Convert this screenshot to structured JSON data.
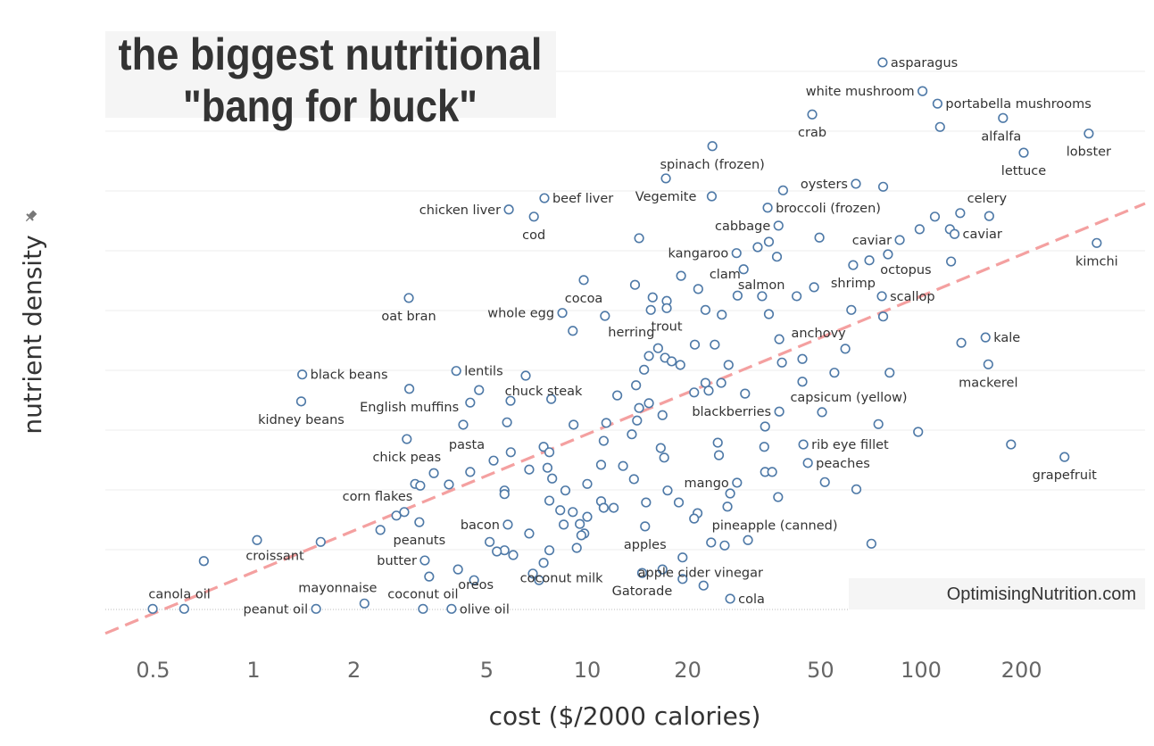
{
  "chart_data": {
    "type": "scatter",
    "title": [
      "the biggest nutritional",
      "\"bang for buck\""
    ],
    "xlabel": "cost ($/2000 calories)",
    "ylabel": "nutrient density",
    "x_scale": "log",
    "xlim": [
      0.36,
      469
    ],
    "ylim": [
      -0.4,
      9.67
    ],
    "x_ticks": [
      0.5,
      1,
      2,
      5,
      10,
      20,
      50,
      100,
      200
    ],
    "x_tick_labels": [
      "0.5",
      "1",
      "2",
      "5",
      "10",
      "20",
      "50",
      "100",
      "200"
    ],
    "y_gridlines": [
      1,
      2,
      3,
      4,
      5,
      6,
      7,
      8,
      9
    ],
    "grid": "horizontal",
    "watermark": "OptimisingNutrition.com",
    "colors": {
      "marker": "#4e79a7",
      "trendline": "#f4a0a0",
      "grid": "#ececec",
      "title_bg": "#f5f5f5"
    },
    "trendline": {
      "style": "dashed",
      "x": [
        0.36,
        469
      ],
      "y": [
        -0.4,
        6.79
      ]
    },
    "labeled_points": [
      {
        "label": "asparagus",
        "x": 76.7,
        "y": 9.15,
        "anchor": "r"
      },
      {
        "label": "white mushroom",
        "x": 101,
        "y": 8.67,
        "anchor": "l"
      },
      {
        "label": "portabella mushrooms",
        "x": 112,
        "y": 8.46,
        "anchor": "r"
      },
      {
        "label": "crab",
        "x": 47.2,
        "y": 8.28,
        "anchor": "b"
      },
      {
        "label": "alfalfa",
        "x": 176,
        "y": 8.22,
        "anchor": "bl"
      },
      {
        "label": "lobster",
        "x": 318,
        "y": 7.96,
        "anchor": "b"
      },
      {
        "label": "lettuce",
        "x": 203,
        "y": 7.64,
        "anchor": "b"
      },
      {
        "label": "spinach (frozen)",
        "x": 23.7,
        "y": 7.75,
        "anchor": "b"
      },
      {
        "label": "Vegemite",
        "x": 17.2,
        "y": 7.21,
        "anchor": "b"
      },
      {
        "label": "chicken liver",
        "x": 5.82,
        "y": 6.69,
        "anchor": "l"
      },
      {
        "label": "beef liver",
        "x": 7.44,
        "y": 6.88,
        "anchor": "r"
      },
      {
        "label": "cod",
        "x": 6.92,
        "y": 6.57,
        "anchor": "b"
      },
      {
        "label": "oysters",
        "x": 63.8,
        "y": 7.12,
        "anchor": "l"
      },
      {
        "label": "broccoli (frozen)",
        "x": 34.7,
        "y": 6.72,
        "anchor": "r"
      },
      {
        "label": "cabbage",
        "x": 37.4,
        "y": 6.42,
        "anchor": "l"
      },
      {
        "label": "celery",
        "x": 131,
        "y": 6.63,
        "anchor": "ar"
      },
      {
        "label": "caviar",
        "x": 86.3,
        "y": 6.18,
        "anchor": "l"
      },
      {
        "label": "caviar",
        "x": 126,
        "y": 6.28,
        "anchor": "r"
      },
      {
        "label": "kangaroo",
        "x": 28.0,
        "y": 5.96,
        "anchor": "l"
      },
      {
        "label": "salmon",
        "x": 29.4,
        "y": 5.69,
        "anchor": "br"
      },
      {
        "label": "kimchi",
        "x": 336,
        "y": 6.13,
        "anchor": "b"
      },
      {
        "label": "clam",
        "x": 21.5,
        "y": 5.36,
        "anchor": "ar"
      },
      {
        "label": "shrimp",
        "x": 62.6,
        "y": 5.76,
        "anchor": "b"
      },
      {
        "label": "octopus",
        "x": 79.6,
        "y": 5.94,
        "anchor": "br"
      },
      {
        "label": "scallop",
        "x": 76.3,
        "y": 5.24,
        "anchor": "r"
      },
      {
        "label": "cocoa",
        "x": 9.76,
        "y": 5.51,
        "anchor": "b"
      },
      {
        "label": "oat bran",
        "x": 2.92,
        "y": 5.21,
        "anchor": "b"
      },
      {
        "label": "whole egg",
        "x": 8.42,
        "y": 4.96,
        "anchor": "l"
      },
      {
        "label": "herring",
        "x": 16.3,
        "y": 4.37,
        "anchor": "al"
      },
      {
        "label": "trout",
        "x": 17.3,
        "y": 5.04,
        "anchor": "b"
      },
      {
        "label": "anchovy",
        "x": 59.3,
        "y": 4.36,
        "anchor": "al"
      },
      {
        "label": "kale",
        "x": 156,
        "y": 4.55,
        "anchor": "r"
      },
      {
        "label": "mackerel",
        "x": 159,
        "y": 4.1,
        "anchor": "b"
      },
      {
        "label": "black beans",
        "x": 1.4,
        "y": 3.93,
        "anchor": "r"
      },
      {
        "label": "lentils",
        "x": 4.05,
        "y": 3.99,
        "anchor": "r"
      },
      {
        "label": "chuck steak",
        "x": 6.54,
        "y": 3.91,
        "anchor": "br"
      },
      {
        "label": "kidney beans",
        "x": 1.39,
        "y": 3.48,
        "anchor": "b"
      },
      {
        "label": "English muffins",
        "x": 2.93,
        "y": 3.69,
        "anchor": "b"
      },
      {
        "label": "blackberries",
        "x": 37.6,
        "y": 3.31,
        "anchor": "l"
      },
      {
        "label": "capsicum (yellow)",
        "x": 50.5,
        "y": 3.3,
        "anchor": "ar"
      },
      {
        "label": "rib eye fillet",
        "x": 44.4,
        "y": 2.76,
        "anchor": "r"
      },
      {
        "label": "grapefruit",
        "x": 269,
        "y": 2.55,
        "anchor": "b"
      },
      {
        "label": "peaches",
        "x": 45.8,
        "y": 2.45,
        "anchor": "r"
      },
      {
        "label": "chick peas",
        "x": 2.88,
        "y": 2.85,
        "anchor": "b"
      },
      {
        "label": "pasta",
        "x": 5.24,
        "y": 2.49,
        "anchor": "al"
      },
      {
        "label": "mango",
        "x": 28.1,
        "y": 2.12,
        "anchor": "l"
      },
      {
        "label": "corn flakes",
        "x": 2.83,
        "y": 1.63,
        "anchor": "al"
      },
      {
        "label": "bacon",
        "x": 5.78,
        "y": 1.42,
        "anchor": "l"
      },
      {
        "label": "peanuts",
        "x": 3.14,
        "y": 1.46,
        "anchor": "b"
      },
      {
        "label": "pineapple (canned)",
        "x": 30.3,
        "y": 1.16,
        "anchor": "ar"
      },
      {
        "label": "apples",
        "x": 14.9,
        "y": 1.39,
        "anchor": "b"
      },
      {
        "label": "croissant",
        "x": 1.025,
        "y": 1.16,
        "anchor": "br"
      },
      {
        "label": "butter",
        "x": 3.26,
        "y": 0.82,
        "anchor": "l"
      },
      {
        "label": "coconut milk",
        "x": 7.4,
        "y": 0.78,
        "anchor": "br"
      },
      {
        "label": "apple cider vinegar",
        "x": 19.3,
        "y": 0.87,
        "anchor": "br"
      },
      {
        "label": "oreos",
        "x": 4.1,
        "y": 0.67,
        "anchor": "br"
      },
      {
        "label": "mayonnaise",
        "x": 2.15,
        "y": 0.1,
        "anchor": "al"
      },
      {
        "label": "coconut oil",
        "x": 3.22,
        "y": 0.01,
        "anchor": "a"
      },
      {
        "label": "Gatorade",
        "x": 14.6,
        "y": 0.61,
        "anchor": "b"
      },
      {
        "label": "cola",
        "x": 26.8,
        "y": 0.18,
        "anchor": "r"
      },
      {
        "label": "canola oil",
        "x": 0.499,
        "y": 0.01,
        "anchor": "ar"
      },
      {
        "label": "peanut oil",
        "x": 1.54,
        "y": 0.01,
        "anchor": "l"
      },
      {
        "label": "olive oil",
        "x": 3.92,
        "y": 0.01,
        "anchor": "r"
      }
    ],
    "unlabeled_points": [
      [
        114,
        8.07
      ],
      [
        0.62,
        0.01
      ],
      [
        0.71,
        0.81
      ],
      [
        1.59,
        1.13
      ],
      [
        4.58,
        0.49
      ],
      [
        14.3,
        6.21
      ],
      [
        49.6,
        6.22
      ],
      [
        99,
        6.36
      ],
      [
        110,
        6.57
      ],
      [
        160,
        6.58
      ],
      [
        122,
        6.36
      ],
      [
        35,
        6.15
      ],
      [
        32.4,
        6.06
      ],
      [
        37,
        5.9
      ],
      [
        77,
        7.07
      ],
      [
        38.6,
        7.01
      ],
      [
        23.6,
        6.91
      ],
      [
        70,
        5.84
      ],
      [
        123,
        5.82
      ],
      [
        19.1,
        5.58
      ],
      [
        13.9,
        5.43
      ],
      [
        15.7,
        5.22
      ],
      [
        17.3,
        5.16
      ],
      [
        15.5,
        5.01
      ],
      [
        22.6,
        5.01
      ],
      [
        25.3,
        4.93
      ],
      [
        28.2,
        5.25
      ],
      [
        33.4,
        5.24
      ],
      [
        42.4,
        5.24
      ],
      [
        47.8,
        5.39
      ],
      [
        35,
        4.94
      ],
      [
        61.8,
        5.01
      ],
      [
        77,
        4.9
      ],
      [
        11.3,
        4.91
      ],
      [
        9.05,
        4.66
      ],
      [
        21.0,
        4.43
      ],
      [
        24.1,
        4.43
      ],
      [
        37.6,
        4.52
      ],
      [
        132,
        4.46
      ],
      [
        15.3,
        4.24
      ],
      [
        17.1,
        4.21
      ],
      [
        17.9,
        4.15
      ],
      [
        19.0,
        4.09
      ],
      [
        14.8,
        4.01
      ],
      [
        26.5,
        4.09
      ],
      [
        38.3,
        4.13
      ],
      [
        44.1,
        4.19
      ],
      [
        55,
        3.96
      ],
      [
        80.5,
        3.96
      ],
      [
        22.6,
        3.79
      ],
      [
        25.2,
        3.79
      ],
      [
        14.0,
        3.75
      ],
      [
        20.9,
        3.63
      ],
      [
        23.1,
        3.66
      ],
      [
        29.7,
        3.61
      ],
      [
        44.1,
        3.81
      ],
      [
        4.74,
        3.67
      ],
      [
        4.46,
        3.46
      ],
      [
        5.89,
        3.49
      ],
      [
        7.8,
        3.52
      ],
      [
        12.3,
        3.58
      ],
      [
        15.3,
        3.45
      ],
      [
        14.3,
        3.37
      ],
      [
        16.8,
        3.25
      ],
      [
        34.1,
        3.06
      ],
      [
        5.75,
        3.13
      ],
      [
        4.25,
        3.09
      ],
      [
        9.1,
        3.09
      ],
      [
        11.4,
        3.12
      ],
      [
        14.1,
        3.16
      ],
      [
        74.5,
        3.1
      ],
      [
        98,
        2.97
      ],
      [
        13.6,
        2.93
      ],
      [
        11.2,
        2.82
      ],
      [
        7.4,
        2.72
      ],
      [
        7.7,
        2.63
      ],
      [
        5.9,
        2.63
      ],
      [
        16.6,
        2.7
      ],
      [
        17.0,
        2.54
      ],
      [
        24.6,
        2.79
      ],
      [
        33.9,
        2.72
      ],
      [
        24.8,
        2.58
      ],
      [
        11.0,
        2.42
      ],
      [
        12.8,
        2.4
      ],
      [
        7.6,
        2.37
      ],
      [
        6.7,
        2.34
      ],
      [
        3.47,
        2.28
      ],
      [
        4.46,
        2.3
      ],
      [
        7.85,
        2.19
      ],
      [
        10.0,
        2.1
      ],
      [
        13.8,
        2.18
      ],
      [
        34.1,
        2.3
      ],
      [
        35.8,
        2.3
      ],
      [
        3.05,
        2.1
      ],
      [
        3.16,
        2.07
      ],
      [
        3.85,
        2.09
      ],
      [
        5.65,
        1.99
      ],
      [
        5.65,
        1.93
      ],
      [
        8.6,
        1.99
      ],
      [
        17.4,
        1.99
      ],
      [
        26.8,
        1.94
      ],
      [
        37.3,
        1.88
      ],
      [
        64,
        2.01
      ],
      [
        51.5,
        2.13
      ],
      [
        7.7,
        1.82
      ],
      [
        11.0,
        1.81
      ],
      [
        11.2,
        1.7
      ],
      [
        12.0,
        1.7
      ],
      [
        15.0,
        1.79
      ],
      [
        18.8,
        1.79
      ],
      [
        26.3,
        1.72
      ],
      [
        8.3,
        1.66
      ],
      [
        9.05,
        1.63
      ],
      [
        10.0,
        1.55
      ],
      [
        21.4,
        1.61
      ],
      [
        20.9,
        1.52
      ],
      [
        2.68,
        1.57
      ],
      [
        2.4,
        1.33
      ],
      [
        8.5,
        1.42
      ],
      [
        9.5,
        1.43
      ],
      [
        9.8,
        1.27
      ],
      [
        9.6,
        1.24
      ],
      [
        6.7,
        1.27
      ],
      [
        7.7,
        0.99
      ],
      [
        5.1,
        1.13
      ],
      [
        5.65,
        0.99
      ],
      [
        6.0,
        0.91
      ],
      [
        5.36,
        0.97
      ],
      [
        9.3,
        1.03
      ],
      [
        23.5,
        1.12
      ],
      [
        25.8,
        1.07
      ],
      [
        71,
        1.1
      ],
      [
        3.36,
        0.55
      ],
      [
        6.87,
        0.6
      ],
      [
        7.17,
        0.49
      ],
      [
        16.8,
        0.67
      ],
      [
        19.3,
        0.51
      ],
      [
        22.3,
        0.4
      ],
      [
        186,
        2.76
      ]
    ]
  }
}
